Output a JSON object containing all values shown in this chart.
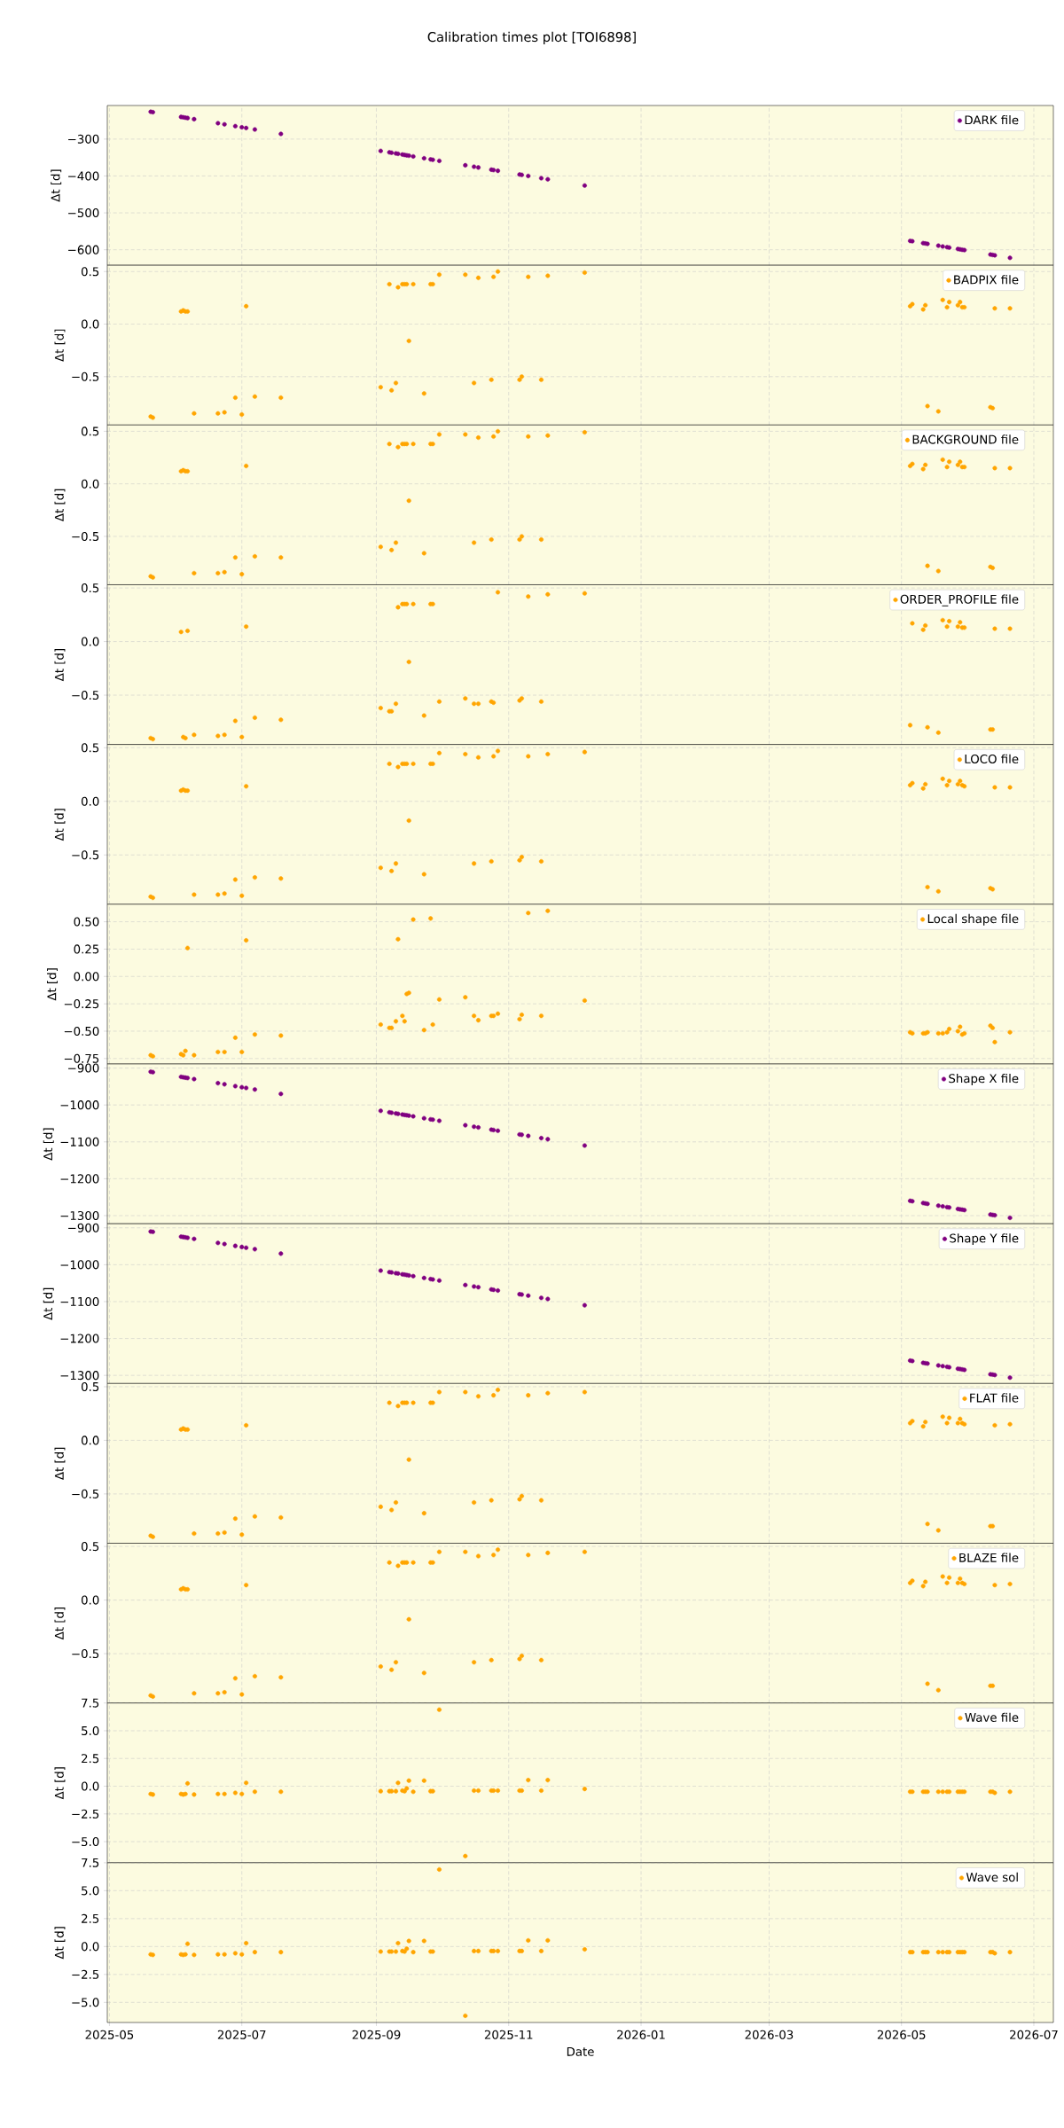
{
  "chart_data": [
    {
      "type": "scatter",
      "title": "Calibration times plot [TOI6898]",
      "ylabel": "Δt [d]",
      "grid": true,
      "legend": "top right",
      "marker": "circle",
      "tick_labels": "y",
      "xlim": [
        "2025-04-30",
        "2026-07-10"
      ],
      "xticks": [
        "2025-05",
        "2025-07",
        "2025-09",
        "2025-11",
        "2026-01",
        "2026-03",
        "2026-05",
        "2026-07"
      ],
      "ylim": [
        -642,
        -209
      ],
      "yticks": [
        {
          "value": -300,
          "label": "−300"
        },
        {
          "value": -400,
          "label": "−400"
        },
        {
          "value": -500,
          "label": "−500"
        },
        {
          "value": -600,
          "label": "−600"
        }
      ],
      "x": [
        "2025-05-20",
        "2025-05-21",
        "2025-06-03",
        "2025-06-04",
        "2025-06-05",
        "2025-06-06",
        "2025-06-09",
        "2025-06-20",
        "2025-06-23",
        "2025-06-28",
        "2025-07-01",
        "2025-07-03",
        "2025-07-07",
        "2025-07-19",
        "2025-09-03",
        "2025-09-07",
        "2025-09-08",
        "2025-09-10",
        "2025-09-11",
        "2025-09-13",
        "2025-09-14",
        "2025-09-15",
        "2025-09-16",
        "2025-09-18",
        "2025-09-23",
        "2025-09-26",
        "2025-09-27",
        "2025-09-30",
        "2025-10-12",
        "2025-10-16",
        "2025-10-18",
        "2025-10-24",
        "2025-10-25",
        "2025-10-27",
        "2025-11-06",
        "2025-11-07",
        "2025-11-10",
        "2025-11-16",
        "2025-11-19",
        "2025-12-06",
        "2026-05-05",
        "2026-05-06",
        "2026-05-11",
        "2026-05-12",
        "2026-05-13",
        "2026-05-18",
        "2026-05-20",
        "2026-05-22",
        "2026-05-23",
        "2026-05-27",
        "2026-05-28",
        "2026-05-29",
        "2026-05-30",
        "2026-06-11",
        "2026-06-12",
        "2026-06-13",
        "2026-06-20"
      ],
      "series": [
        {
          "name": "DARK file",
          "color": "#800080",
          "values": [
            -226,
            -227,
            -240,
            -241,
            -242,
            -243,
            -246,
            -257,
            -260,
            -265,
            -268,
            -270,
            -274,
            -286,
            -332,
            -336,
            -337,
            -339,
            -340,
            -342,
            -343,
            -344,
            -345,
            -347,
            -352,
            -355,
            -356,
            -359,
            -371,
            -375,
            -377,
            -383,
            -384,
            -386,
            -396,
            -397,
            -400,
            -406,
            -409,
            -426,
            -576,
            -577,
            -582,
            -583,
            -584,
            -589,
            -591,
            -593,
            -594,
            -598,
            -599,
            -600,
            -601,
            -613,
            -614,
            -615,
            -622
          ]
        }
      ]
    },
    {
      "type": "scatter",
      "ylabel": "Δt [d]",
      "grid": true,
      "legend": "top right",
      "marker": "circle",
      "tick_labels": "y",
      "xlim": [
        "2025-04-30",
        "2026-07-10"
      ],
      "xticks": [
        "2025-05",
        "2025-07",
        "2025-09",
        "2025-11",
        "2026-01",
        "2026-03",
        "2026-05",
        "2026-07"
      ],
      "ylim": [
        -0.96,
        0.56
      ],
      "yticks": [
        {
          "value": -0.5,
          "label": "−0.5"
        },
        {
          "value": 0,
          "label": "0.0"
        },
        {
          "value": 0.5,
          "label": "0.5"
        }
      ],
      "x": [
        "2025-05-20",
        "2025-05-21",
        "2025-06-03",
        "2025-06-04",
        "2025-06-05",
        "2025-06-06",
        "2025-06-09",
        "2025-06-20",
        "2025-06-23",
        "2025-06-28",
        "2025-07-01",
        "2025-07-03",
        "2025-07-07",
        "2025-07-19",
        "2025-09-03",
        "2025-09-07",
        "2025-09-08",
        "2025-09-10",
        "2025-09-11",
        "2025-09-13",
        "2025-09-14",
        "2025-09-15",
        "2025-09-16",
        "2025-09-18",
        "2025-09-23",
        "2025-09-26",
        "2025-09-27",
        "2025-09-30",
        "2025-10-12",
        "2025-10-16",
        "2025-10-18",
        "2025-10-24",
        "2025-10-25",
        "2025-10-27",
        "2025-11-06",
        "2025-11-07",
        "2025-11-10",
        "2025-11-16",
        "2025-11-19",
        "2025-12-06",
        "2026-05-05",
        "2026-05-06",
        "2026-05-11",
        "2026-05-12",
        "2026-05-13",
        "2026-05-18",
        "2026-05-20",
        "2026-05-22",
        "2026-05-23",
        "2026-05-27",
        "2026-05-28",
        "2026-05-29",
        "2026-05-30",
        "2026-06-11",
        "2026-06-12",
        "2026-06-13",
        "2026-06-20"
      ],
      "series": [
        {
          "name": "BADPIX file",
          "color": "#ffa500",
          "values": [
            -0.88,
            -0.89,
            0.12,
            0.13,
            0.12,
            0.12,
            -0.85,
            -0.85,
            -0.84,
            -0.7,
            -0.86,
            0.17,
            -0.69,
            -0.7,
            -0.6,
            0.38,
            -0.63,
            -0.56,
            0.35,
            0.38,
            0.38,
            0.38,
            -0.16,
            0.38,
            -0.66,
            0.38,
            0.38,
            0.47,
            0.47,
            -0.56,
            0.44,
            -0.53,
            0.45,
            0.5,
            -0.53,
            -0.5,
            0.45,
            -0.53,
            0.46,
            0.49,
            0.17,
            0.19,
            0.14,
            0.18,
            -0.78,
            -0.83,
            0.23,
            0.16,
            0.21,
            0.18,
            0.21,
            0.16,
            0.16,
            -0.79,
            -0.8,
            0.15,
            0.15
          ]
        }
      ]
    },
    {
      "type": "scatter",
      "ylabel": "Δt [d]",
      "grid": true,
      "legend": "top right",
      "marker": "circle",
      "tick_labels": "y",
      "xlim": [
        "2025-04-30",
        "2026-07-10"
      ],
      "xticks": [
        "2025-05",
        "2025-07",
        "2025-09",
        "2025-11",
        "2026-01",
        "2026-03",
        "2026-05",
        "2026-07"
      ],
      "ylim": [
        -0.96,
        0.56
      ],
      "yticks": [
        {
          "value": -0.5,
          "label": "−0.5"
        },
        {
          "value": 0,
          "label": "0.0"
        },
        {
          "value": 0.5,
          "label": "0.5"
        }
      ],
      "x": [
        "2025-05-20",
        "2025-05-21",
        "2025-06-03",
        "2025-06-04",
        "2025-06-05",
        "2025-06-06",
        "2025-06-09",
        "2025-06-20",
        "2025-06-23",
        "2025-06-28",
        "2025-07-01",
        "2025-07-03",
        "2025-07-07",
        "2025-07-19",
        "2025-09-03",
        "2025-09-07",
        "2025-09-08",
        "2025-09-10",
        "2025-09-11",
        "2025-09-13",
        "2025-09-14",
        "2025-09-15",
        "2025-09-16",
        "2025-09-18",
        "2025-09-23",
        "2025-09-26",
        "2025-09-27",
        "2025-09-30",
        "2025-10-12",
        "2025-10-16",
        "2025-10-18",
        "2025-10-24",
        "2025-10-25",
        "2025-10-27",
        "2025-11-06",
        "2025-11-07",
        "2025-11-10",
        "2025-11-16",
        "2025-11-19",
        "2025-12-06",
        "2026-05-05",
        "2026-05-06",
        "2026-05-11",
        "2026-05-12",
        "2026-05-13",
        "2026-05-18",
        "2026-05-20",
        "2026-05-22",
        "2026-05-23",
        "2026-05-27",
        "2026-05-28",
        "2026-05-29",
        "2026-05-30",
        "2026-06-11",
        "2026-06-12",
        "2026-06-13",
        "2026-06-20"
      ],
      "series": [
        {
          "name": "BACKGROUND file",
          "color": "#ffa500",
          "values": [
            -0.88,
            -0.89,
            0.12,
            0.13,
            0.12,
            0.12,
            -0.85,
            -0.85,
            -0.84,
            -0.7,
            -0.86,
            0.17,
            -0.69,
            -0.7,
            -0.6,
            0.38,
            -0.63,
            -0.56,
            0.35,
            0.38,
            0.38,
            0.38,
            -0.16,
            0.38,
            -0.66,
            0.38,
            0.38,
            0.47,
            0.47,
            -0.56,
            0.44,
            -0.53,
            0.45,
            0.5,
            -0.53,
            -0.5,
            0.45,
            -0.53,
            0.46,
            0.49,
            0.17,
            0.19,
            0.14,
            0.18,
            -0.78,
            -0.83,
            0.23,
            0.16,
            0.21,
            0.18,
            0.21,
            0.16,
            0.16,
            -0.79,
            -0.8,
            0.15,
            0.15
          ]
        }
      ]
    },
    {
      "type": "scatter",
      "ylabel": "Δt [d]",
      "grid": true,
      "legend": "top right",
      "marker": "circle",
      "tick_labels": "y",
      "xlim": [
        "2025-04-30",
        "2026-07-10"
      ],
      "xticks": [
        "2025-05",
        "2025-07",
        "2025-09",
        "2025-11",
        "2026-01",
        "2026-03",
        "2026-05",
        "2026-07"
      ],
      "ylim": [
        -0.96,
        0.53
      ],
      "yticks": [
        {
          "value": -0.5,
          "label": "−0.5"
        },
        {
          "value": 0,
          "label": "0.0"
        },
        {
          "value": 0.5,
          "label": "0.5"
        }
      ],
      "x": [
        "2025-05-20",
        "2025-05-21",
        "2025-06-03",
        "2025-06-04",
        "2025-06-05",
        "2025-06-06",
        "2025-06-09",
        "2025-06-20",
        "2025-06-23",
        "2025-06-28",
        "2025-07-01",
        "2025-07-03",
        "2025-07-07",
        "2025-07-19",
        "2025-09-03",
        "2025-09-07",
        "2025-09-08",
        "2025-09-10",
        "2025-09-11",
        "2025-09-13",
        "2025-09-14",
        "2025-09-15",
        "2025-09-16",
        "2025-09-18",
        "2025-09-23",
        "2025-09-26",
        "2025-09-27",
        "2025-09-30",
        "2025-10-12",
        "2025-10-16",
        "2025-10-18",
        "2025-10-24",
        "2025-10-25",
        "2025-10-27",
        "2025-11-06",
        "2025-11-07",
        "2025-11-10",
        "2025-11-16",
        "2025-11-19",
        "2025-12-06",
        "2026-05-05",
        "2026-05-06",
        "2026-05-11",
        "2026-05-12",
        "2026-05-13",
        "2026-05-18",
        "2026-05-20",
        "2026-05-22",
        "2026-05-23",
        "2026-05-27",
        "2026-05-28",
        "2026-05-29",
        "2026-05-30",
        "2026-06-11",
        "2026-06-12",
        "2026-06-13",
        "2026-06-20"
      ],
      "series": [
        {
          "name": "ORDER_PROFILE file",
          "color": "#ffa500",
          "values": [
            -0.9,
            -0.91,
            0.09,
            -0.89,
            -0.9,
            0.1,
            -0.87,
            -0.88,
            -0.87,
            -0.74,
            -0.89,
            0.14,
            -0.71,
            -0.73,
            -0.62,
            -0.65,
            -0.65,
            -0.58,
            0.32,
            0.35,
            0.35,
            0.35,
            -0.19,
            0.35,
            -0.69,
            0.35,
            0.35,
            -0.56,
            -0.53,
            -0.58,
            -0.58,
            -0.56,
            -0.57,
            0.46,
            -0.55,
            -0.53,
            0.42,
            -0.56,
            0.44,
            0.45,
            -0.78,
            0.17,
            0.11,
            0.15,
            -0.8,
            -0.85,
            0.2,
            0.14,
            0.19,
            0.14,
            0.18,
            0.13,
            0.13,
            -0.82,
            -0.82,
            0.12,
            0.12
          ]
        }
      ]
    },
    {
      "type": "scatter",
      "ylabel": "Δt [d]",
      "grid": true,
      "legend": "top right",
      "marker": "circle",
      "tick_labels": "y",
      "xlim": [
        "2025-04-30",
        "2026-07-10"
      ],
      "xticks": [
        "2025-05",
        "2025-07",
        "2025-09",
        "2025-11",
        "2026-01",
        "2026-03",
        "2026-05",
        "2026-07"
      ],
      "ylim": [
        -0.96,
        0.53
      ],
      "yticks": [
        {
          "value": -0.5,
          "label": "−0.5"
        },
        {
          "value": 0,
          "label": "0.0"
        },
        {
          "value": 0.5,
          "label": "0.5"
        }
      ],
      "x": [
        "2025-05-20",
        "2025-05-21",
        "2025-06-03",
        "2025-06-04",
        "2025-06-05",
        "2025-06-06",
        "2025-06-09",
        "2025-06-20",
        "2025-06-23",
        "2025-06-28",
        "2025-07-01",
        "2025-07-03",
        "2025-07-07",
        "2025-07-19",
        "2025-09-03",
        "2025-09-07",
        "2025-09-08",
        "2025-09-10",
        "2025-09-11",
        "2025-09-13",
        "2025-09-14",
        "2025-09-15",
        "2025-09-16",
        "2025-09-18",
        "2025-09-23",
        "2025-09-26",
        "2025-09-27",
        "2025-09-30",
        "2025-10-12",
        "2025-10-16",
        "2025-10-18",
        "2025-10-24",
        "2025-10-25",
        "2025-10-27",
        "2025-11-06",
        "2025-11-07",
        "2025-11-10",
        "2025-11-16",
        "2025-11-19",
        "2025-12-06",
        "2026-05-05",
        "2026-05-06",
        "2026-05-11",
        "2026-05-12",
        "2026-05-13",
        "2026-05-18",
        "2026-05-20",
        "2026-05-22",
        "2026-05-23",
        "2026-05-27",
        "2026-05-28",
        "2026-05-29",
        "2026-05-30",
        "2026-06-11",
        "2026-06-12",
        "2026-06-13",
        "2026-06-20"
      ],
      "series": [
        {
          "name": "LOCO file",
          "color": "#ffa500",
          "values": [
            -0.89,
            -0.9,
            0.1,
            0.11,
            0.1,
            0.1,
            -0.87,
            -0.87,
            -0.86,
            -0.73,
            -0.88,
            0.14,
            -0.71,
            -0.72,
            -0.62,
            0.35,
            -0.65,
            -0.58,
            0.32,
            0.35,
            0.35,
            0.35,
            -0.18,
            0.35,
            -0.68,
            0.35,
            0.35,
            0.45,
            0.44,
            -0.58,
            0.41,
            -0.56,
            0.42,
            0.47,
            -0.55,
            -0.52,
            0.42,
            -0.56,
            0.44,
            0.46,
            0.15,
            0.17,
            0.12,
            0.16,
            -0.8,
            -0.84,
            0.21,
            0.15,
            0.19,
            0.16,
            0.19,
            0.15,
            0.14,
            -0.81,
            -0.82,
            0.13,
            0.13
          ]
        }
      ]
    },
    {
      "type": "scatter",
      "ylabel": "Δt [d]",
      "grid": true,
      "legend": "top right",
      "marker": "circle",
      "tick_labels": "y",
      "xlim": [
        "2025-04-30",
        "2026-07-10"
      ],
      "xticks": [
        "2025-05",
        "2025-07",
        "2025-09",
        "2025-11",
        "2026-01",
        "2026-03",
        "2026-05",
        "2026-07"
      ],
      "ylim": [
        -0.8,
        0.66
      ],
      "yticks": [
        {
          "value": -0.75,
          "label": "−0.75"
        },
        {
          "value": -0.5,
          "label": "−0.50"
        },
        {
          "value": -0.25,
          "label": "−0.25"
        },
        {
          "value": 0,
          "label": "0.00"
        },
        {
          "value": 0.25,
          "label": "0.25"
        },
        {
          "value": 0.5,
          "label": "0.50"
        }
      ],
      "x": [
        "2025-05-20",
        "2025-05-21",
        "2025-06-03",
        "2025-06-04",
        "2025-06-05",
        "2025-06-06",
        "2025-06-09",
        "2025-06-20",
        "2025-06-23",
        "2025-06-28",
        "2025-07-01",
        "2025-07-03",
        "2025-07-07",
        "2025-07-19",
        "2025-09-03",
        "2025-09-07",
        "2025-09-08",
        "2025-09-10",
        "2025-09-11",
        "2025-09-13",
        "2025-09-14",
        "2025-09-15",
        "2025-09-16",
        "2025-09-18",
        "2025-09-23",
        "2025-09-26",
        "2025-09-27",
        "2025-09-30",
        "2025-10-12",
        "2025-10-16",
        "2025-10-18",
        "2025-10-24",
        "2025-10-25",
        "2025-10-27",
        "2025-11-06",
        "2025-11-07",
        "2025-11-10",
        "2025-11-16",
        "2025-11-19",
        "2025-12-06",
        "2026-05-05",
        "2026-05-06",
        "2026-05-11",
        "2026-05-12",
        "2026-05-13",
        "2026-05-18",
        "2026-05-20",
        "2026-05-22",
        "2026-05-23",
        "2026-05-27",
        "2026-05-28",
        "2026-05-29",
        "2026-05-30",
        "2026-06-11",
        "2026-06-12",
        "2026-06-13",
        "2026-06-20"
      ],
      "series": [
        {
          "name": "Local shape file",
          "color": "#ffa500",
          "values": [
            -0.72,
            -0.73,
            -0.71,
            -0.72,
            -0.68,
            0.26,
            -0.72,
            -0.69,
            -0.69,
            -0.56,
            -0.69,
            0.33,
            -0.53,
            -0.54,
            -0.44,
            -0.47,
            -0.47,
            -0.41,
            0.34,
            -0.36,
            -0.41,
            -0.16,
            -0.15,
            0.52,
            -0.49,
            0.53,
            -0.44,
            -0.21,
            -0.19,
            -0.36,
            -0.4,
            -0.36,
            -0.36,
            -0.34,
            -0.39,
            -0.35,
            0.58,
            -0.36,
            0.6,
            -0.22,
            -0.51,
            -0.52,
            -0.52,
            -0.52,
            -0.51,
            -0.52,
            -0.52,
            -0.51,
            -0.48,
            -0.5,
            -0.46,
            -0.53,
            -0.52,
            -0.45,
            -0.47,
            -0.6,
            -0.51
          ]
        }
      ]
    },
    {
      "type": "scatter",
      "ylabel": "Δt [d]",
      "grid": true,
      "legend": "top right",
      "marker": "circle",
      "tick_labels": "y",
      "xlim": [
        "2025-04-30",
        "2026-07-10"
      ],
      "xticks": [
        "2025-05",
        "2025-07",
        "2025-09",
        "2025-11",
        "2026-01",
        "2026-03",
        "2026-05",
        "2026-07"
      ],
      "ylim": [
        -1322,
        -889
      ],
      "yticks": [
        {
          "value": -900,
          "label": "−900"
        },
        {
          "value": -1000,
          "label": "−1000"
        },
        {
          "value": -1100,
          "label": "−1100"
        },
        {
          "value": -1200,
          "label": "−1200"
        },
        {
          "value": -1300,
          "label": "−1300"
        }
      ],
      "x": [
        "2025-05-20",
        "2025-05-21",
        "2025-06-03",
        "2025-06-04",
        "2025-06-05",
        "2025-06-06",
        "2025-06-09",
        "2025-06-20",
        "2025-06-23",
        "2025-06-28",
        "2025-07-01",
        "2025-07-03",
        "2025-07-07",
        "2025-07-19",
        "2025-09-03",
        "2025-09-07",
        "2025-09-08",
        "2025-09-10",
        "2025-09-11",
        "2025-09-13",
        "2025-09-14",
        "2025-09-15",
        "2025-09-16",
        "2025-09-18",
        "2025-09-23",
        "2025-09-26",
        "2025-09-27",
        "2025-09-30",
        "2025-10-12",
        "2025-10-16",
        "2025-10-18",
        "2025-10-24",
        "2025-10-25",
        "2025-10-27",
        "2025-11-06",
        "2025-11-07",
        "2025-11-10",
        "2025-11-16",
        "2025-11-19",
        "2025-12-06",
        "2026-05-05",
        "2026-05-06",
        "2026-05-11",
        "2026-05-12",
        "2026-05-13",
        "2026-05-18",
        "2026-05-20",
        "2026-05-22",
        "2026-05-23",
        "2026-05-27",
        "2026-05-28",
        "2026-05-29",
        "2026-05-30",
        "2026-06-11",
        "2026-06-12",
        "2026-06-13",
        "2026-06-20"
      ],
      "series": [
        {
          "name": "Shape X file",
          "color": "#800080",
          "values": [
            -910,
            -911,
            -924,
            -925,
            -926,
            -927,
            -930,
            -941,
            -944,
            -949,
            -952,
            -954,
            -958,
            -970,
            -1016,
            -1020,
            -1021,
            -1023,
            -1024,
            -1026,
            -1027,
            -1028,
            -1029,
            -1031,
            -1036,
            -1039,
            -1040,
            -1043,
            -1055,
            -1059,
            -1061,
            -1067,
            -1068,
            -1070,
            -1080,
            -1081,
            -1084,
            -1090,
            -1093,
            -1110,
            -1260,
            -1261,
            -1266,
            -1267,
            -1268,
            -1273,
            -1275,
            -1277,
            -1278,
            -1282,
            -1283,
            -1284,
            -1285,
            -1297,
            -1298,
            -1299,
            -1306
          ]
        }
      ]
    },
    {
      "type": "scatter",
      "ylabel": "Δt [d]",
      "grid": true,
      "legend": "top right",
      "marker": "circle",
      "tick_labels": "y",
      "xlim": [
        "2025-04-30",
        "2026-07-10"
      ],
      "xticks": [
        "2025-05",
        "2025-07",
        "2025-09",
        "2025-11",
        "2026-01",
        "2026-03",
        "2026-05",
        "2026-07"
      ],
      "ylim": [
        -1322,
        -889
      ],
      "yticks": [
        {
          "value": -900,
          "label": "−900"
        },
        {
          "value": -1000,
          "label": "−1000"
        },
        {
          "value": -1100,
          "label": "−1100"
        },
        {
          "value": -1200,
          "label": "−1200"
        },
        {
          "value": -1300,
          "label": "−1300"
        }
      ],
      "x": [
        "2025-05-20",
        "2025-05-21",
        "2025-06-03",
        "2025-06-04",
        "2025-06-05",
        "2025-06-06",
        "2025-06-09",
        "2025-06-20",
        "2025-06-23",
        "2025-06-28",
        "2025-07-01",
        "2025-07-03",
        "2025-07-07",
        "2025-07-19",
        "2025-09-03",
        "2025-09-07",
        "2025-09-08",
        "2025-09-10",
        "2025-09-11",
        "2025-09-13",
        "2025-09-14",
        "2025-09-15",
        "2025-09-16",
        "2025-09-18",
        "2025-09-23",
        "2025-09-26",
        "2025-09-27",
        "2025-09-30",
        "2025-10-12",
        "2025-10-16",
        "2025-10-18",
        "2025-10-24",
        "2025-10-25",
        "2025-10-27",
        "2025-11-06",
        "2025-11-07",
        "2025-11-10",
        "2025-11-16",
        "2025-11-19",
        "2025-12-06",
        "2026-05-05",
        "2026-05-06",
        "2026-05-11",
        "2026-05-12",
        "2026-05-13",
        "2026-05-18",
        "2026-05-20",
        "2026-05-22",
        "2026-05-23",
        "2026-05-27",
        "2026-05-28",
        "2026-05-29",
        "2026-05-30",
        "2026-06-11",
        "2026-06-12",
        "2026-06-13",
        "2026-06-20"
      ],
      "series": [
        {
          "name": "Shape Y file",
          "color": "#800080",
          "values": [
            -910,
            -911,
            -924,
            -925,
            -926,
            -927,
            -930,
            -941,
            -944,
            -949,
            -952,
            -954,
            -958,
            -970,
            -1016,
            -1020,
            -1021,
            -1023,
            -1024,
            -1026,
            -1027,
            -1028,
            -1029,
            -1031,
            -1036,
            -1039,
            -1040,
            -1043,
            -1055,
            -1059,
            -1061,
            -1067,
            -1068,
            -1070,
            -1080,
            -1081,
            -1084,
            -1090,
            -1093,
            -1110,
            -1260,
            -1261,
            -1266,
            -1267,
            -1268,
            -1273,
            -1275,
            -1277,
            -1278,
            -1282,
            -1283,
            -1284,
            -1285,
            -1297,
            -1298,
            -1299,
            -1306
          ]
        }
      ]
    },
    {
      "type": "scatter",
      "ylabel": "Δt [d]",
      "grid": true,
      "legend": "top right",
      "marker": "circle",
      "tick_labels": "y",
      "xlim": [
        "2025-04-30",
        "2026-07-10"
      ],
      "xticks": [
        "2025-05",
        "2025-07",
        "2025-09",
        "2025-11",
        "2026-01",
        "2026-03",
        "2026-05",
        "2026-07"
      ],
      "ylim": [
        -0.96,
        0.53
      ],
      "yticks": [
        {
          "value": -0.5,
          "label": "−0.5"
        },
        {
          "value": 0,
          "label": "0.0"
        },
        {
          "value": 0.5,
          "label": "0.5"
        }
      ],
      "x": [
        "2025-05-20",
        "2025-05-21",
        "2025-06-03",
        "2025-06-04",
        "2025-06-05",
        "2025-06-06",
        "2025-06-09",
        "2025-06-20",
        "2025-06-23",
        "2025-06-28",
        "2025-07-01",
        "2025-07-03",
        "2025-07-07",
        "2025-07-19",
        "2025-09-03",
        "2025-09-07",
        "2025-09-08",
        "2025-09-10",
        "2025-09-11",
        "2025-09-13",
        "2025-09-14",
        "2025-09-15",
        "2025-09-16",
        "2025-09-18",
        "2025-09-23",
        "2025-09-26",
        "2025-09-27",
        "2025-09-30",
        "2025-10-12",
        "2025-10-16",
        "2025-10-18",
        "2025-10-24",
        "2025-10-25",
        "2025-10-27",
        "2025-11-06",
        "2025-11-07",
        "2025-11-10",
        "2025-11-16",
        "2025-11-19",
        "2025-12-06",
        "2026-05-05",
        "2026-05-06",
        "2026-05-11",
        "2026-05-12",
        "2026-05-13",
        "2026-05-18",
        "2026-05-20",
        "2026-05-22",
        "2026-05-23",
        "2026-05-27",
        "2026-05-28",
        "2026-05-29",
        "2026-05-30",
        "2026-06-11",
        "2026-06-12",
        "2026-06-13",
        "2026-06-20"
      ],
      "series": [
        {
          "name": "FLAT file",
          "color": "#ffa500",
          "values": [
            -0.89,
            -0.9,
            0.1,
            0.11,
            0.1,
            0.1,
            -0.87,
            -0.87,
            -0.86,
            -0.73,
            -0.88,
            0.14,
            -0.71,
            -0.72,
            -0.62,
            0.35,
            -0.65,
            -0.58,
            0.32,
            0.35,
            0.35,
            0.35,
            -0.18,
            0.35,
            -0.68,
            0.35,
            0.35,
            0.45,
            0.45,
            -0.58,
            0.41,
            -0.56,
            0.42,
            0.47,
            -0.55,
            -0.52,
            0.42,
            -0.56,
            0.44,
            0.45,
            0.16,
            0.18,
            0.13,
            0.17,
            -0.78,
            -0.84,
            0.22,
            0.16,
            0.21,
            0.16,
            0.2,
            0.16,
            0.15,
            -0.8,
            -0.8,
            0.14,
            0.15
          ]
        }
      ]
    },
    {
      "type": "scatter",
      "ylabel": "Δt [d]",
      "grid": true,
      "legend": "top right",
      "marker": "circle",
      "tick_labels": "y",
      "xlim": [
        "2025-04-30",
        "2026-07-10"
      ],
      "xticks": [
        "2025-05",
        "2025-07",
        "2025-09",
        "2025-11",
        "2026-01",
        "2026-03",
        "2026-05",
        "2026-07"
      ],
      "ylim": [
        -0.96,
        0.53
      ],
      "yticks": [
        {
          "value": -0.5,
          "label": "−0.5"
        },
        {
          "value": 0,
          "label": "0.0"
        },
        {
          "value": 0.5,
          "label": "0.5"
        }
      ],
      "x": [
        "2025-05-20",
        "2025-05-21",
        "2025-06-03",
        "2025-06-04",
        "2025-06-05",
        "2025-06-06",
        "2025-06-09",
        "2025-06-20",
        "2025-06-23",
        "2025-06-28",
        "2025-07-01",
        "2025-07-03",
        "2025-07-07",
        "2025-07-19",
        "2025-09-03",
        "2025-09-07",
        "2025-09-08",
        "2025-09-10",
        "2025-09-11",
        "2025-09-13",
        "2025-09-14",
        "2025-09-15",
        "2025-09-16",
        "2025-09-18",
        "2025-09-23",
        "2025-09-26",
        "2025-09-27",
        "2025-09-30",
        "2025-10-12",
        "2025-10-16",
        "2025-10-18",
        "2025-10-24",
        "2025-10-25",
        "2025-10-27",
        "2025-11-06",
        "2025-11-07",
        "2025-11-10",
        "2025-11-16",
        "2025-11-19",
        "2025-12-06",
        "2026-05-05",
        "2026-05-06",
        "2026-05-11",
        "2026-05-12",
        "2026-05-13",
        "2026-05-18",
        "2026-05-20",
        "2026-05-22",
        "2026-05-23",
        "2026-05-27",
        "2026-05-28",
        "2026-05-29",
        "2026-05-30",
        "2026-06-11",
        "2026-06-12",
        "2026-06-13",
        "2026-06-20"
      ],
      "series": [
        {
          "name": "BLAZE file",
          "color": "#ffa500",
          "values": [
            -0.89,
            -0.9,
            0.1,
            0.11,
            0.1,
            0.1,
            -0.87,
            -0.87,
            -0.86,
            -0.73,
            -0.88,
            0.14,
            -0.71,
            -0.72,
            -0.62,
            0.35,
            -0.65,
            -0.58,
            0.32,
            0.35,
            0.35,
            0.35,
            -0.18,
            0.35,
            -0.68,
            0.35,
            0.35,
            0.45,
            0.45,
            -0.58,
            0.41,
            -0.56,
            0.42,
            0.47,
            -0.55,
            -0.52,
            0.42,
            -0.56,
            0.44,
            0.45,
            0.16,
            0.18,
            0.13,
            0.17,
            -0.78,
            -0.84,
            0.22,
            0.16,
            0.21,
            0.16,
            0.2,
            0.16,
            0.15,
            -0.8,
            -0.8,
            0.14,
            0.15
          ]
        }
      ]
    },
    {
      "type": "scatter",
      "ylabel": "Δt [d]",
      "grid": true,
      "legend": "top right",
      "marker": "circle",
      "tick_labels": "y",
      "xlim": [
        "2025-04-30",
        "2026-07-10"
      ],
      "xticks": [
        "2025-05",
        "2025-07",
        "2025-09",
        "2025-11",
        "2026-01",
        "2026-03",
        "2026-05",
        "2026-07"
      ],
      "ylim": [
        -6.9,
        7.5
      ],
      "yticks": [
        {
          "value": -5,
          "label": "−5.0"
        },
        {
          "value": -2.5,
          "label": "−2.5"
        },
        {
          "value": 0,
          "label": "0.0"
        },
        {
          "value": 2.5,
          "label": "2.5"
        },
        {
          "value": 5,
          "label": "5.0"
        },
        {
          "value": 7.5,
          "label": "7.5"
        }
      ],
      "x": [
        "2025-05-20",
        "2025-05-21",
        "2025-06-03",
        "2025-06-04",
        "2025-06-05",
        "2025-06-06",
        "2025-06-09",
        "2025-06-20",
        "2025-06-23",
        "2025-06-28",
        "2025-07-01",
        "2025-07-03",
        "2025-07-07",
        "2025-07-19",
        "2025-09-03",
        "2025-09-07",
        "2025-09-08",
        "2025-09-10",
        "2025-09-11",
        "2025-09-13",
        "2025-09-14",
        "2025-09-15",
        "2025-09-16",
        "2025-09-18",
        "2025-09-23",
        "2025-09-26",
        "2025-09-27",
        "2025-09-30",
        "2025-10-12",
        "2025-10-16",
        "2025-10-18",
        "2025-10-24",
        "2025-10-25",
        "2025-10-27",
        "2025-11-06",
        "2025-11-07",
        "2025-11-10",
        "2025-11-16",
        "2025-11-19",
        "2025-12-06",
        "2026-05-05",
        "2026-05-06",
        "2026-05-11",
        "2026-05-12",
        "2026-05-13",
        "2026-05-18",
        "2026-05-20",
        "2026-05-22",
        "2026-05-23",
        "2026-05-27",
        "2026-05-28",
        "2026-05-29",
        "2026-05-30",
        "2026-06-11",
        "2026-06-12",
        "2026-06-13",
        "2026-06-20"
      ],
      "series": [
        {
          "name": "Wave file",
          "color": "#ffa500",
          "values": [
            -0.7,
            -0.75,
            -0.7,
            -0.75,
            -0.7,
            0.25,
            -0.75,
            -0.7,
            -0.7,
            -0.6,
            -0.7,
            0.3,
            -0.5,
            -0.5,
            -0.45,
            -0.45,
            -0.45,
            -0.45,
            0.3,
            -0.4,
            -0.45,
            -0.2,
            0.5,
            -0.5,
            0.5,
            -0.45,
            -0.45,
            6.9,
            -6.3,
            -0.4,
            -0.4,
            -0.4,
            -0.4,
            -0.4,
            -0.4,
            -0.4,
            0.55,
            -0.4,
            0.55,
            -0.25,
            -0.5,
            -0.5,
            -0.5,
            -0.5,
            -0.5,
            -0.5,
            -0.5,
            -0.5,
            -0.5,
            -0.5,
            -0.5,
            -0.5,
            -0.5,
            -0.5,
            -0.5,
            -0.6,
            -0.5
          ]
        }
      ]
    },
    {
      "type": "scatter",
      "ylabel": "Δt [d]",
      "xlabel": "Date",
      "grid": true,
      "legend": "top right",
      "marker": "circle",
      "xlim": [
        "2025-04-30",
        "2026-07-10"
      ],
      "xticks": [
        "2025-05",
        "2025-07",
        "2025-09",
        "2025-11",
        "2026-01",
        "2026-03",
        "2026-05",
        "2026-07"
      ],
      "ylim": [
        -6.8,
        7.5
      ],
      "yticks": [
        {
          "value": -5,
          "label": "−5.0"
        },
        {
          "value": -2.5,
          "label": "−2.5"
        },
        {
          "value": 0,
          "label": "0.0"
        },
        {
          "value": 2.5,
          "label": "2.5"
        },
        {
          "value": 5,
          "label": "5.0"
        },
        {
          "value": 7.5,
          "label": "7.5"
        }
      ],
      "x": [
        "2025-05-20",
        "2025-05-21",
        "2025-06-03",
        "2025-06-04",
        "2025-06-05",
        "2025-06-06",
        "2025-06-09",
        "2025-06-20",
        "2025-06-23",
        "2025-06-28",
        "2025-07-01",
        "2025-07-03",
        "2025-07-07",
        "2025-07-19",
        "2025-09-03",
        "2025-09-07",
        "2025-09-08",
        "2025-09-10",
        "2025-09-11",
        "2025-09-13",
        "2025-09-14",
        "2025-09-15",
        "2025-09-16",
        "2025-09-18",
        "2025-09-23",
        "2025-09-26",
        "2025-09-27",
        "2025-09-30",
        "2025-10-12",
        "2025-10-16",
        "2025-10-18",
        "2025-10-24",
        "2025-10-25",
        "2025-10-27",
        "2025-11-06",
        "2025-11-07",
        "2025-11-10",
        "2025-11-16",
        "2025-11-19",
        "2025-12-06",
        "2026-05-05",
        "2026-05-06",
        "2026-05-11",
        "2026-05-12",
        "2026-05-13",
        "2026-05-18",
        "2026-05-20",
        "2026-05-22",
        "2026-05-23",
        "2026-05-27",
        "2026-05-28",
        "2026-05-29",
        "2026-05-30",
        "2026-06-11",
        "2026-06-12",
        "2026-06-13",
        "2026-06-20"
      ],
      "series": [
        {
          "name": "Wave sol",
          "color": "#ffa500",
          "values": [
            -0.7,
            -0.75,
            -0.7,
            -0.75,
            -0.7,
            0.25,
            -0.75,
            -0.7,
            -0.7,
            -0.6,
            -0.7,
            0.3,
            -0.5,
            -0.5,
            -0.45,
            -0.45,
            -0.45,
            -0.45,
            0.3,
            -0.4,
            -0.45,
            -0.2,
            0.5,
            -0.5,
            0.5,
            -0.45,
            -0.45,
            6.9,
            -6.2,
            -0.4,
            -0.4,
            -0.4,
            -0.4,
            -0.4,
            -0.4,
            -0.4,
            0.55,
            -0.4,
            0.55,
            -0.25,
            -0.5,
            -0.5,
            -0.5,
            -0.5,
            -0.5,
            -0.5,
            -0.5,
            -0.5,
            -0.5,
            -0.5,
            -0.5,
            -0.5,
            -0.5,
            -0.5,
            -0.5,
            -0.6,
            -0.5
          ]
        }
      ]
    }
  ]
}
